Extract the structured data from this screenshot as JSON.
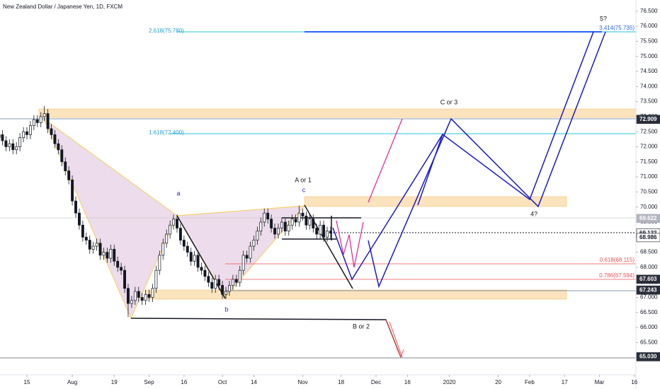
{
  "chart_data": {
    "type": "candlestick",
    "title": "New Zealand Dollar / Japanese Yen, 1D, FXCM",
    "up_color": "#ffffff",
    "down_color": "#131722",
    "candles": [
      [
        72.3,
        72.55,
        72.15,
        72.4
      ],
      [
        72.4,
        72.55,
        72.05,
        72.2
      ],
      [
        72.2,
        72.35,
        71.85,
        72.0
      ],
      [
        72.0,
        72.25,
        71.85,
        72.1
      ],
      [
        72.1,
        72.25,
        71.75,
        71.9
      ],
      [
        71.9,
        72.15,
        71.75,
        72.0
      ],
      [
        72.0,
        72.45,
        71.85,
        72.3
      ],
      [
        72.3,
        72.65,
        72.15,
        72.5
      ],
      [
        72.5,
        72.65,
        72.25,
        72.4
      ],
      [
        72.4,
        72.85,
        72.25,
        72.7
      ],
      [
        72.7,
        73.05,
        72.55,
        72.9
      ],
      [
        72.9,
        73.05,
        72.65,
        72.8
      ],
      [
        72.8,
        73.15,
        72.65,
        73.0
      ],
      [
        73.0,
        73.35,
        72.85,
        73.1
      ],
      [
        73.1,
        73.25,
        72.45,
        72.6
      ],
      [
        72.6,
        72.75,
        72.25,
        72.4
      ],
      [
        72.4,
        72.55,
        71.95,
        72.1
      ],
      [
        72.1,
        72.25,
        71.75,
        71.9
      ],
      [
        71.9,
        72.05,
        71.35,
        71.5
      ],
      [
        71.5,
        71.65,
        71.05,
        71.2
      ],
      [
        71.2,
        71.35,
        70.75,
        70.9
      ],
      [
        70.9,
        71.05,
        70.05,
        70.2
      ],
      [
        70.2,
        70.35,
        69.65,
        69.8
      ],
      [
        69.8,
        69.95,
        69.25,
        69.4
      ],
      [
        69.4,
        69.55,
        68.85,
        69.0
      ],
      [
        69.0,
        69.15,
        68.75,
        68.9
      ],
      [
        68.9,
        69.05,
        68.45,
        68.6
      ],
      [
        68.6,
        68.85,
        68.45,
        68.7
      ],
      [
        68.7,
        68.95,
        68.55,
        68.8
      ],
      [
        68.8,
        68.95,
        68.25,
        68.4
      ],
      [
        68.4,
        68.65,
        68.25,
        68.5
      ],
      [
        68.5,
        68.65,
        68.15,
        68.3
      ],
      [
        68.3,
        68.75,
        68.15,
        68.6
      ],
      [
        68.6,
        68.75,
        68.05,
        68.2
      ],
      [
        68.2,
        68.35,
        67.85,
        68.0
      ],
      [
        68.0,
        68.15,
        67.75,
        67.9
      ],
      [
        67.9,
        68.05,
        67.15,
        67.3
      ],
      [
        67.3,
        67.45,
        66.35,
        66.8
      ],
      [
        66.8,
        67.05,
        66.65,
        66.9
      ],
      [
        66.9,
        67.35,
        66.75,
        67.2
      ],
      [
        67.2,
        67.35,
        66.85,
        67.0
      ],
      [
        67.0,
        67.15,
        66.75,
        66.9
      ],
      [
        66.9,
        67.25,
        66.75,
        67.1
      ],
      [
        67.1,
        67.25,
        66.85,
        67.0
      ],
      [
        67.0,
        67.45,
        66.85,
        67.3
      ],
      [
        67.3,
        68.05,
        67.15,
        67.9
      ],
      [
        67.9,
        68.55,
        67.75,
        68.4
      ],
      [
        68.4,
        68.95,
        68.25,
        68.8
      ],
      [
        68.8,
        69.25,
        68.65,
        69.1
      ],
      [
        69.1,
        69.55,
        68.95,
        69.4
      ],
      [
        69.4,
        69.75,
        69.25,
        69.6
      ],
      [
        69.6,
        69.75,
        69.15,
        69.3
      ],
      [
        69.3,
        69.45,
        68.75,
        68.9
      ],
      [
        68.9,
        69.05,
        68.55,
        68.7
      ],
      [
        68.7,
        68.85,
        68.35,
        68.5
      ],
      [
        68.5,
        68.65,
        68.05,
        68.2
      ],
      [
        68.2,
        68.55,
        68.05,
        68.4
      ],
      [
        68.4,
        68.55,
        67.85,
        68.0
      ],
      [
        68.0,
        68.15,
        67.75,
        67.9
      ],
      [
        67.9,
        68.05,
        67.55,
        67.7
      ],
      [
        67.7,
        67.85,
        67.35,
        67.5
      ],
      [
        67.5,
        67.65,
        67.15,
        67.3
      ],
      [
        67.3,
        67.75,
        67.15,
        67.6
      ],
      [
        67.6,
        67.75,
        67.25,
        67.4
      ],
      [
        67.4,
        67.55,
        66.95,
        67.1
      ],
      [
        67.1,
        67.35,
        66.95,
        67.2
      ],
      [
        67.2,
        67.55,
        67.05,
        67.4
      ],
      [
        67.4,
        67.75,
        67.25,
        67.6
      ],
      [
        67.6,
        67.75,
        67.35,
        67.5
      ],
      [
        67.5,
        68.05,
        67.35,
        67.9
      ],
      [
        67.9,
        68.55,
        67.75,
        68.4
      ],
      [
        68.4,
        68.55,
        68.15,
        68.3
      ],
      [
        68.3,
        68.85,
        68.15,
        68.7
      ],
      [
        68.7,
        69.05,
        68.55,
        68.9
      ],
      [
        68.9,
        69.35,
        68.75,
        69.2
      ],
      [
        69.2,
        69.65,
        69.05,
        69.5
      ],
      [
        69.5,
        69.95,
        69.35,
        69.8
      ],
      [
        69.8,
        69.95,
        69.45,
        69.6
      ],
      [
        69.6,
        69.75,
        69.15,
        69.3
      ],
      [
        69.3,
        69.45,
        68.95,
        69.1
      ],
      [
        69.1,
        69.45,
        68.95,
        69.3
      ],
      [
        69.3,
        69.65,
        69.15,
        69.5
      ],
      [
        69.5,
        69.65,
        69.05,
        69.2
      ],
      [
        69.2,
        69.55,
        69.05,
        69.4
      ],
      [
        69.4,
        69.75,
        69.25,
        69.6
      ],
      [
        69.6,
        69.75,
        69.35,
        69.5
      ],
      [
        69.5,
        70.05,
        69.35,
        69.8
      ],
      [
        69.8,
        69.95,
        69.55,
        69.7
      ],
      [
        69.7,
        69.85,
        69.25,
        69.4
      ],
      [
        69.4,
        69.75,
        69.25,
        69.6
      ],
      [
        69.6,
        69.75,
        69.15,
        69.3
      ],
      [
        69.3,
        69.45,
        68.95,
        69.1
      ],
      [
        69.1,
        69.55,
        68.95,
        69.4
      ],
      [
        69.4,
        69.55,
        68.85,
        69.0
      ],
      [
        69.0,
        69.35,
        68.85,
        69.2
      ],
      [
        69.2,
        69.35,
        68.95,
        69.13
      ]
    ],
    "ylim": [
      64.43,
      76.87
    ],
    "yticks": [
      {
        "value": 65.5,
        "label": "65.500"
      },
      {
        "value": 66,
        "label": "66.000"
      },
      {
        "value": 66.5,
        "label": "66.500"
      },
      {
        "value": 67,
        "label": "67.000"
      },
      {
        "value": 67.5,
        "label": "67.500"
      },
      {
        "value": 68,
        "label": "68.000"
      },
      {
        "value": 68.5,
        "label": "68.500"
      },
      {
        "value": 69,
        "label": "69.000"
      },
      {
        "value": 69.5,
        "label": "69.500"
      },
      {
        "value": 70,
        "label": "70.000"
      },
      {
        "value": 70.5,
        "label": "70.500"
      },
      {
        "value": 71,
        "label": "71.000"
      },
      {
        "value": 71.5,
        "label": "71.500"
      },
      {
        "value": 72,
        "label": "72.000"
      },
      {
        "value": 72.5,
        "label": "72.500"
      },
      {
        "value": 73,
        "label": "73.000"
      },
      {
        "value": 73.5,
        "label": "73.500"
      },
      {
        "value": 74,
        "label": "74.000"
      },
      {
        "value": 74.5,
        "label": "74.500"
      },
      {
        "value": 75,
        "label": "75.000"
      },
      {
        "value": 75.5,
        "label": "75.500"
      },
      {
        "value": 76,
        "label": "76.000"
      },
      {
        "value": 76.5,
        "label": "76.500"
      }
    ],
    "xticks": [
      {
        "value": 8,
        "label": "15"
      },
      {
        "value": 21,
        "label": "Aug"
      },
      {
        "value": 33,
        "label": "19"
      },
      {
        "value": 43,
        "label": "Sep"
      },
      {
        "value": 53,
        "label": "16"
      },
      {
        "value": 64,
        "label": "Oct"
      },
      {
        "value": 73,
        "label": "14"
      },
      {
        "value": 87,
        "label": "Nov"
      },
      {
        "value": 98,
        "label": "18"
      },
      {
        "value": 108,
        "label": "Dec"
      },
      {
        "value": 117,
        "label": "16"
      },
      {
        "value": 129,
        "label": "2020"
      },
      {
        "value": 143,
        "label": "20"
      },
      {
        "value": 152,
        "label": "Feb"
      },
      {
        "value": 162,
        "label": "17"
      },
      {
        "value": 172,
        "label": "Mar"
      },
      {
        "value": 182,
        "label": "16"
      }
    ],
    "price_labels": [
      {
        "value": 72.909,
        "bg": "#2a2e39",
        "fg": "#ffffff"
      },
      {
        "value": 69.622,
        "bg": "#b2b5be",
        "fg": "#ffffff"
      },
      {
        "value": 69.132,
        "bg": "#ffffff",
        "fg": "#131722"
      },
      {
        "value": 68.986,
        "bg": "#ffffff",
        "fg": "#131722"
      },
      {
        "value": 67.603,
        "bg": "#2a2e39",
        "fg": "#ffffff"
      },
      {
        "value": 67.243,
        "bg": "#2a2e39",
        "fg": "#ffffff"
      },
      {
        "value": {
          "value": 65.03,
          "label": "65.030"
        },
        "bg": "#2a2e39",
        "fg": "#ffffff"
      }
    ],
    "annotations": {
      "fib_2618": "2.618(75.780)",
      "fib_1618": "1.618(72.400)",
      "fib_0618": "0.618(68.115)",
      "fib_0786": "0.786(67.594)",
      "fib_3414": "3.414(75.735)",
      "wave_5": "5?",
      "wave_c3": "C or 3",
      "wave_a1": "A or 1",
      "wave_b2": "B or 2",
      "wave_4": "4?",
      "a": "a",
      "b": "b",
      "c": "c"
    }
  }
}
